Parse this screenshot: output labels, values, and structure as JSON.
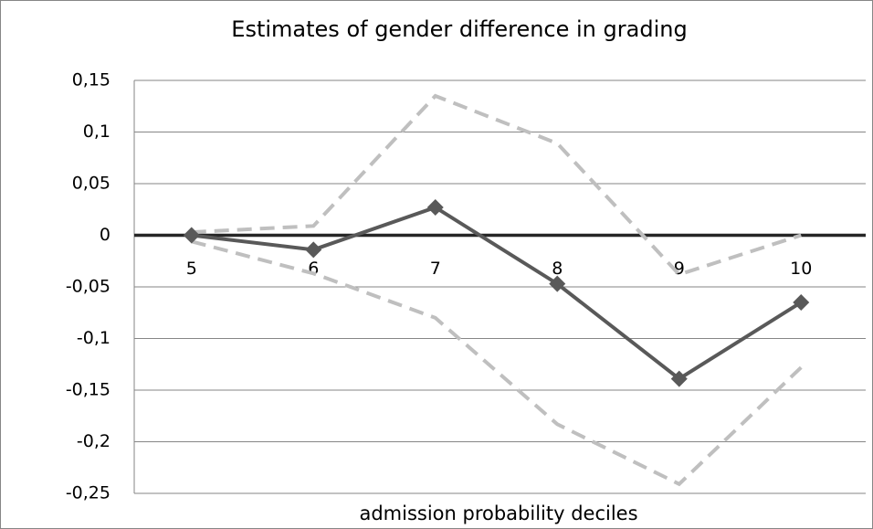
{
  "chart_data": {
    "type": "line",
    "title": "Estimates of gender difference in grading",
    "x_label": "admission probability deciles",
    "categories": [
      "5",
      "6",
      "7",
      "8",
      "9",
      "10"
    ],
    "series": [
      {
        "color": "#595959",
        "dashed": false,
        "markers": true,
        "values": [
          0,
          -0.014,
          0.027,
          -0.047,
          -0.139,
          -0.065
        ]
      },
      {
        "color": "#bfbfbf",
        "dashed": true,
        "markers": false,
        "values": [
          0.003,
          0.009,
          0.135,
          0.089,
          -0.038,
          0
        ]
      },
      {
        "color": "#bfbfbf",
        "dashed": true,
        "markers": false,
        "values": [
          -0.006,
          -0.037,
          -0.08,
          -0.183,
          -0.241,
          -0.128
        ]
      }
    ],
    "ylim": [
      -0.25,
      0.15
    ],
    "yticks": [
      {
        "value": -0.25,
        "label": "-0,25"
      },
      {
        "value": -0.2,
        "label": "-0,2"
      },
      {
        "value": -0.15,
        "label": "-0,15"
      },
      {
        "value": -0.1,
        "label": "-0,1"
      },
      {
        "value": -0.05,
        "label": "-0,05"
      },
      0,
      {
        "value": 0.05,
        "label": "0,05"
      },
      {
        "value": 0.1,
        "label": "0,1"
      },
      {
        "value": 0.15,
        "label": "0,15"
      }
    ],
    "grid": true
  }
}
